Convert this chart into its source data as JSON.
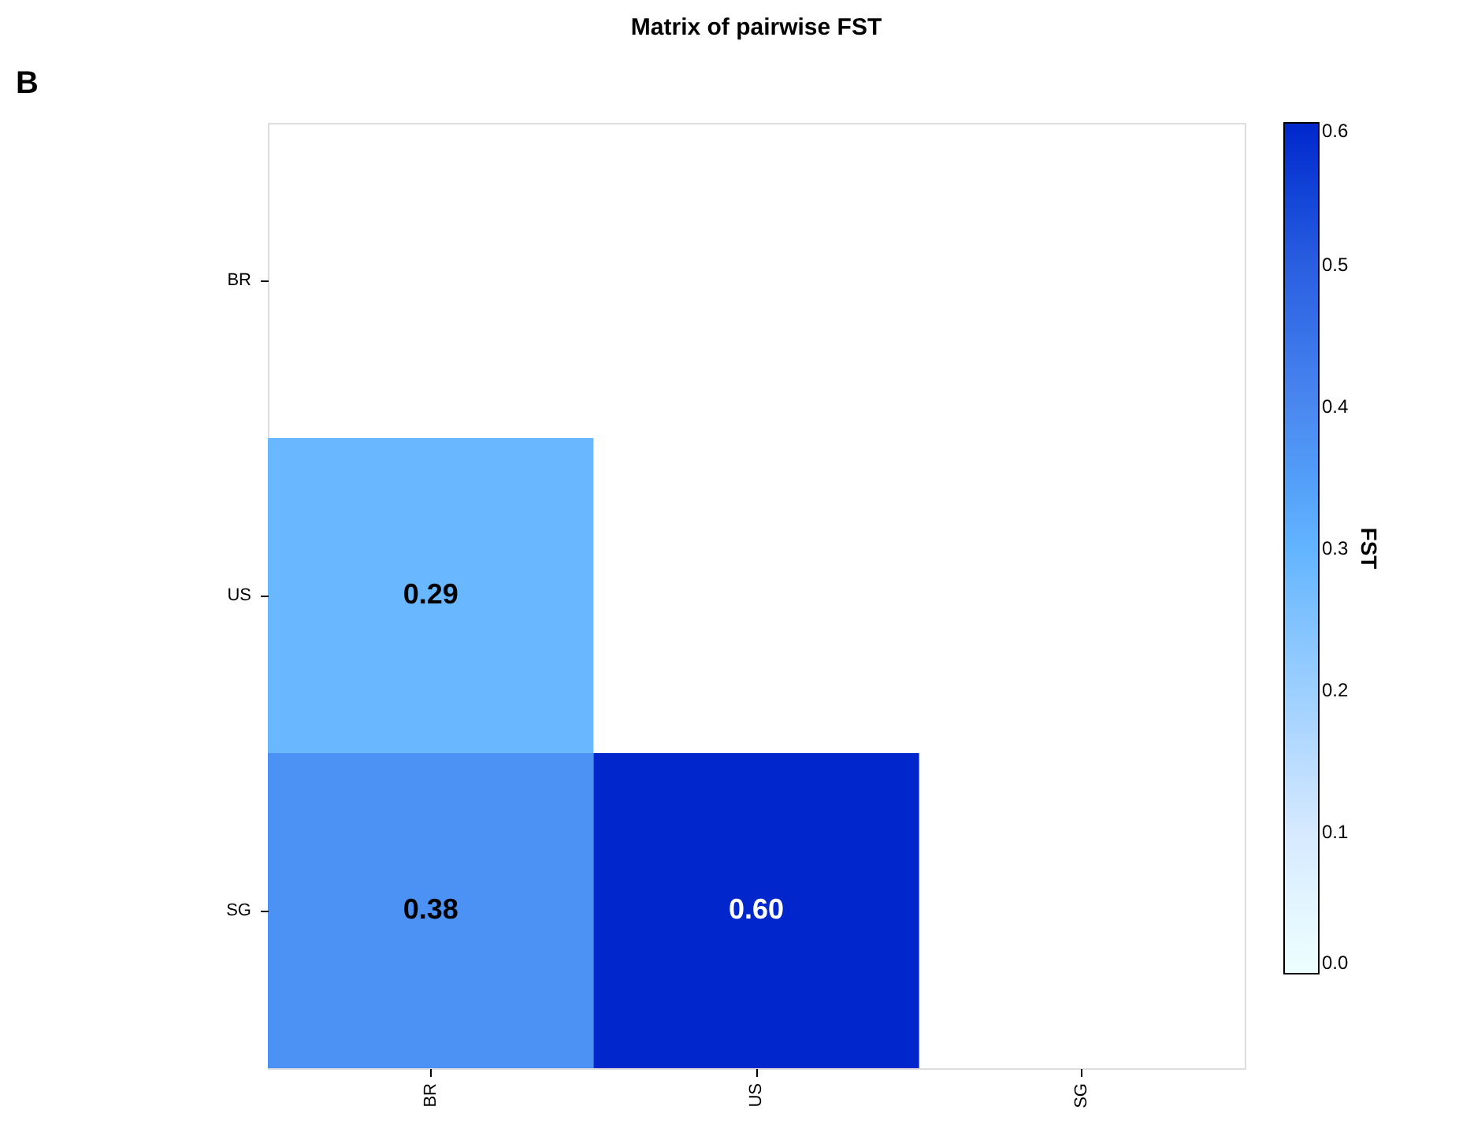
{
  "chart_data": {
    "type": "heatmap",
    "title": "Matrix of pairwise FST",
    "clabel": "FST",
    "annotations": [
      "B"
    ],
    "categories": [
      "BR",
      "US",
      "SG"
    ],
    "y_categories": [
      "BR",
      "US",
      "SG"
    ],
    "cells": [
      [
        null,
        null,
        null
      ],
      [
        0.29,
        null,
        null
      ],
      [
        0.38,
        0.6,
        null
      ]
    ],
    "cell_labels": [
      [
        null,
        null,
        null
      ],
      [
        "0.29",
        null,
        null
      ],
      [
        "0.38",
        "0.60",
        null
      ]
    ],
    "clim": [
      0,
      0.6
    ],
    "cticks": [
      {
        "value": 0,
        "label": "0.0"
      },
      0.1,
      0.2,
      0.3,
      0.4,
      0.5,
      0.6
    ],
    "grid": false
  }
}
